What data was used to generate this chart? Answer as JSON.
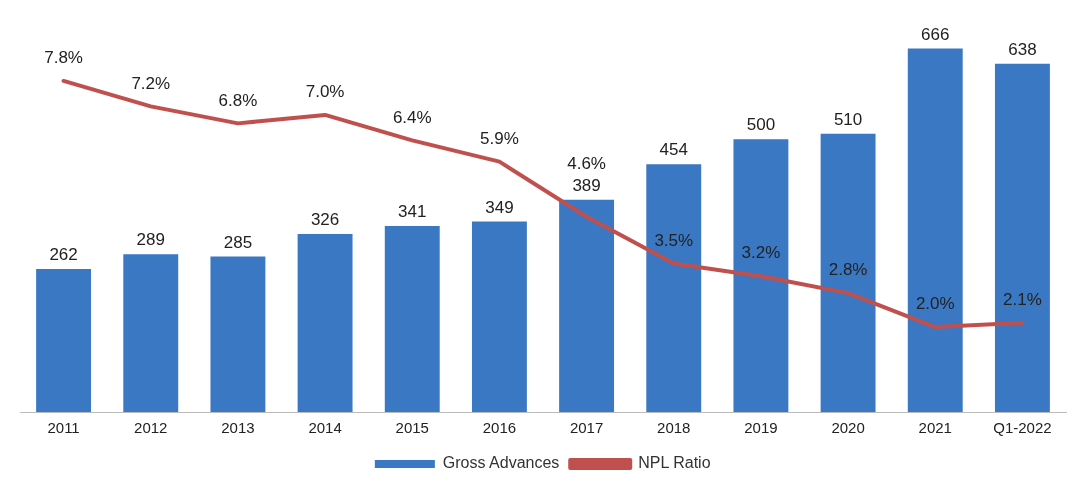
{
  "chart_data": {
    "type": "bar",
    "categories": [
      "2011",
      "2012",
      "2013",
      "2014",
      "2015",
      "2016",
      "2017",
      "2018",
      "2019",
      "2020",
      "2021",
      "Q1-2022"
    ],
    "series": [
      {
        "name": "Gross Advances",
        "color": "#3a78c4",
        "values": [
          262,
          289,
          285,
          326,
          341,
          349,
          389,
          454,
          500,
          510,
          666,
          638
        ]
      },
      {
        "name": "NPL Ratio",
        "type": "line",
        "axis": "y2",
        "color": "#c0504d",
        "marker": "none",
        "values": [
          7.8,
          7.2,
          6.8,
          7.0,
          6.4,
          5.9,
          4.6,
          3.5,
          3.2,
          2.8,
          2.0,
          2.1
        ],
        "value_labels": [
          "7.8%",
          "7.2%",
          "6.8%",
          "7.0%",
          "6.4%",
          "5.9%",
          "4.6%",
          "3.5%",
          "3.2%",
          "2.8%",
          "2.0%",
          "2.1%"
        ]
      }
    ],
    "tick_labels": "x",
    "grid": false,
    "legend": "bottom",
    "data_labels": true
  }
}
